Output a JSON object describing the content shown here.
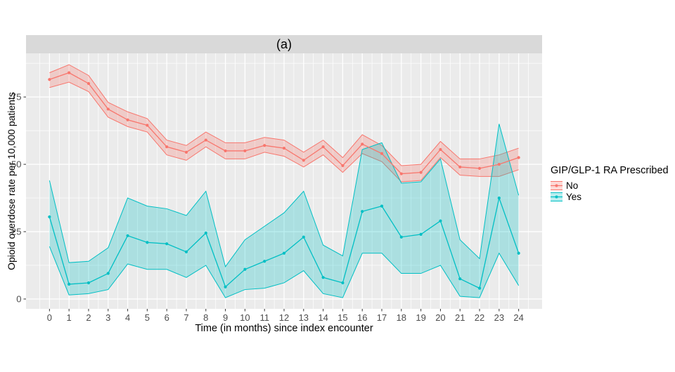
{
  "colors": {
    "no_series": "#F8766D",
    "yes_series": "#00BFC4",
    "panel_bg": "#EBEBEB",
    "strip_bg": "#D9D9D9",
    "gridline": "#FFFFFF",
    "tick_label": "#4D4D4D",
    "tick_mark": "#333333",
    "ribbon_opacity": 0.27
  },
  "chart_data": {
    "type": "line",
    "title": "(a)",
    "xlabel": "Time (in months) since index encounter",
    "ylabel": "Opioid overdose rate per 10,000 patients",
    "legend_title": "GIP/GLP-1 RA Prescribed",
    "legend_position": "right",
    "grid": "white major+minor gridlines on gray panel",
    "x": [
      0,
      1,
      2,
      3,
      4,
      5,
      6,
      7,
      8,
      9,
      10,
      11,
      12,
      13,
      14,
      15,
      16,
      17,
      18,
      19,
      20,
      21,
      22,
      23,
      24
    ],
    "x_tick_labels": [
      "0",
      "1",
      "2",
      "3",
      "4",
      "5",
      "6",
      "7",
      "8",
      "9",
      "10",
      "11",
      "12",
      "13",
      "14",
      "15",
      "16",
      "17",
      "18",
      "19",
      "20",
      "21",
      "22",
      "23",
      "24"
    ],
    "y_ticks": [
      0,
      25,
      50,
      75
    ],
    "y_tick_labels": [
      "0",
      "25",
      "50",
      "75"
    ],
    "y_minor_ticks": [
      12.5,
      37.5,
      62.5,
      87.5
    ],
    "x_minor_step": 0.5,
    "xlim": [
      -1.2,
      25.2
    ],
    "ylim": [
      -3.65,
      91.2
    ],
    "series": [
      {
        "name": "No",
        "color": "#F8766D",
        "values": [
          81.5,
          84,
          80,
          70.5,
          66.5,
          64.5,
          56.5,
          54.5,
          59,
          55,
          55,
          57,
          56,
          51.5,
          56.5,
          49.5,
          57.5,
          54,
          46.5,
          47,
          55.5,
          49,
          48.5,
          50,
          52.5
        ],
        "ci_upper": [
          84,
          87,
          83,
          73,
          69.5,
          67,
          59,
          57,
          62,
          58,
          58,
          60,
          59,
          54.5,
          59,
          52.5,
          61,
          57,
          49.5,
          50,
          58.5,
          52,
          52,
          53.5,
          56
        ],
        "ci_lower": [
          78.5,
          80.5,
          77,
          67.5,
          64,
          62,
          53.5,
          51.5,
          56.5,
          52,
          52,
          54.5,
          53,
          49,
          53.5,
          47,
          54,
          51,
          43.5,
          44,
          52.5,
          46,
          45.5,
          45.5,
          48
        ]
      },
      {
        "name": "Yes",
        "color": "#00BFC4",
        "values": [
          30.5,
          5.5,
          6,
          9.5,
          23.5,
          21,
          20.5,
          17.5,
          24.5,
          4.5,
          11,
          14,
          17,
          23,
          8,
          6,
          32.5,
          34.5,
          23,
          24,
          29,
          7.5,
          4,
          37.5,
          17
        ],
        "ci_upper": [
          44,
          13.5,
          14,
          19,
          37.5,
          34.5,
          33.5,
          31,
          40,
          12,
          22,
          27,
          32,
          40,
          20,
          16,
          55.5,
          58,
          43,
          43.5,
          52,
          22,
          15,
          65,
          38.5
        ],
        "ci_lower": [
          19.5,
          1.5,
          2,
          3.5,
          13,
          11,
          11,
          8,
          12.5,
          0.5,
          3.5,
          4,
          6,
          10.5,
          2,
          0.5,
          17,
          17,
          9.5,
          9.5,
          12.5,
          1,
          0.5,
          17,
          5
        ]
      }
    ]
  }
}
